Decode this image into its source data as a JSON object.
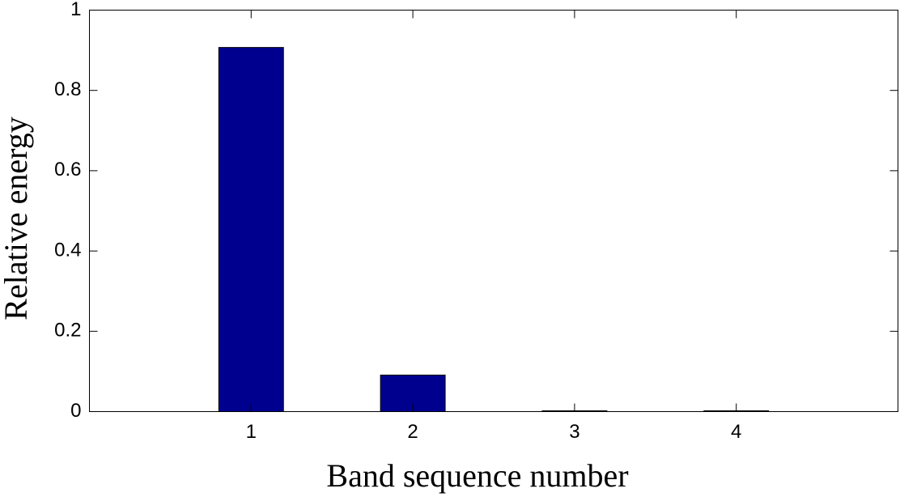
{
  "chart_data": {
    "type": "bar",
    "x": [
      1,
      2,
      3,
      4
    ],
    "values": [
      0.907,
      0.091,
      0.002,
      0.002
    ],
    "color": "#00008f",
    "xlabel": "Band sequence number",
    "ylabel": "Relative energy",
    "xlim": [
      0,
      5
    ],
    "xticks": [
      1,
      2,
      3,
      4
    ],
    "ylim": [
      0,
      1
    ],
    "yticks": [
      0,
      0.2,
      0.4,
      0.6,
      0.8,
      1
    ]
  }
}
